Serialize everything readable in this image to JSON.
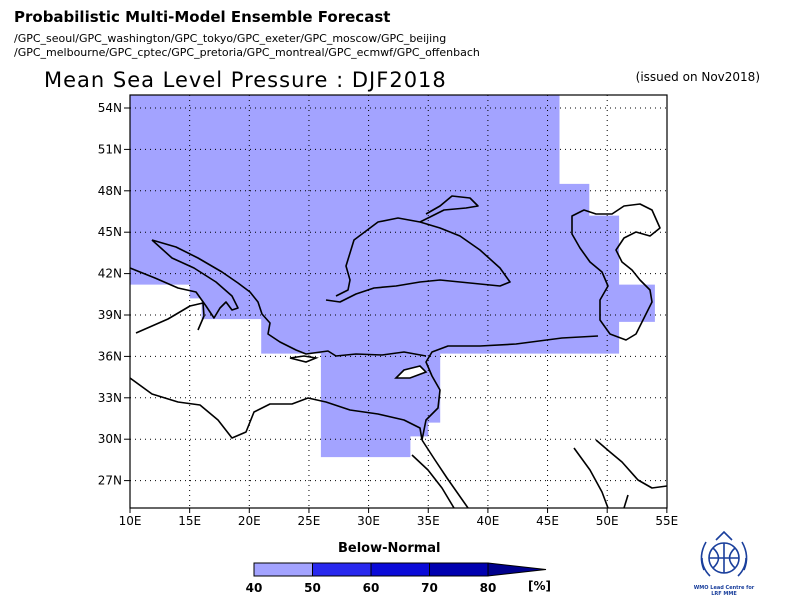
{
  "header": {
    "title": "Probabilistic Multi-Model Ensemble Forecast",
    "models_line1": "/GPC_seoul/GPC_washington/GPC_tokyo/GPC_exeter/GPC_moscow/GPC_beijing",
    "models_line2": "/GPC_melbourne/GPC_cptec/GPC_pretoria/GPC_montreal/GPC_ecmwf/GPC_offenbach"
  },
  "plot": {
    "title": "Mean Sea Level Pressure : DJF2018",
    "issued": "(issued on Nov2018)"
  },
  "axes": {
    "lat_labels": [
      "54N",
      "51N",
      "48N",
      "45N",
      "42N",
      "39N",
      "36N",
      "33N",
      "30N",
      "27N"
    ],
    "lon_labels": [
      "10E",
      "15E",
      "20E",
      "25E",
      "30E",
      "35E",
      "40E",
      "45E",
      "50E",
      "55E"
    ]
  },
  "legend": {
    "title": "Below-Normal",
    "ticks": [
      "40",
      "50",
      "60",
      "70",
      "80"
    ],
    "unit": "[%]",
    "colors": [
      "#a3a3ff",
      "#2828ee",
      "#0a0ad8",
      "#0000b0",
      "#00008c"
    ]
  },
  "map": {
    "fill_color": "#a3a3ff",
    "forecast_category": "Below-Normal",
    "forecast_probability_band": "40-50",
    "shaded_region_polygon_lonlat": [
      [
        10,
        55
      ],
      [
        46,
        55
      ],
      [
        46,
        48.5
      ],
      [
        48.5,
        48.5
      ],
      [
        48.5,
        46.2
      ],
      [
        51,
        46.2
      ],
      [
        51,
        41.2
      ],
      [
        54,
        41.2
      ],
      [
        54,
        38.5
      ],
      [
        51,
        38.5
      ],
      [
        51,
        36.2
      ],
      [
        36,
        36.2
      ],
      [
        36,
        31.2
      ],
      [
        35,
        31.2
      ],
      [
        35,
        30.2
      ],
      [
        33.5,
        30.2
      ],
      [
        33.5,
        28.7
      ],
      [
        26,
        28.7
      ],
      [
        26,
        36.2
      ],
      [
        21,
        36.2
      ],
      [
        21,
        38.7
      ],
      [
        16,
        38.7
      ],
      [
        16,
        40.2
      ],
      [
        15,
        40.2
      ],
      [
        15,
        41.2
      ],
      [
        10,
        41.2
      ]
    ]
  },
  "logo": {
    "text_line1": "WMO Lead Centre for",
    "text_line2": "LRF MME"
  }
}
